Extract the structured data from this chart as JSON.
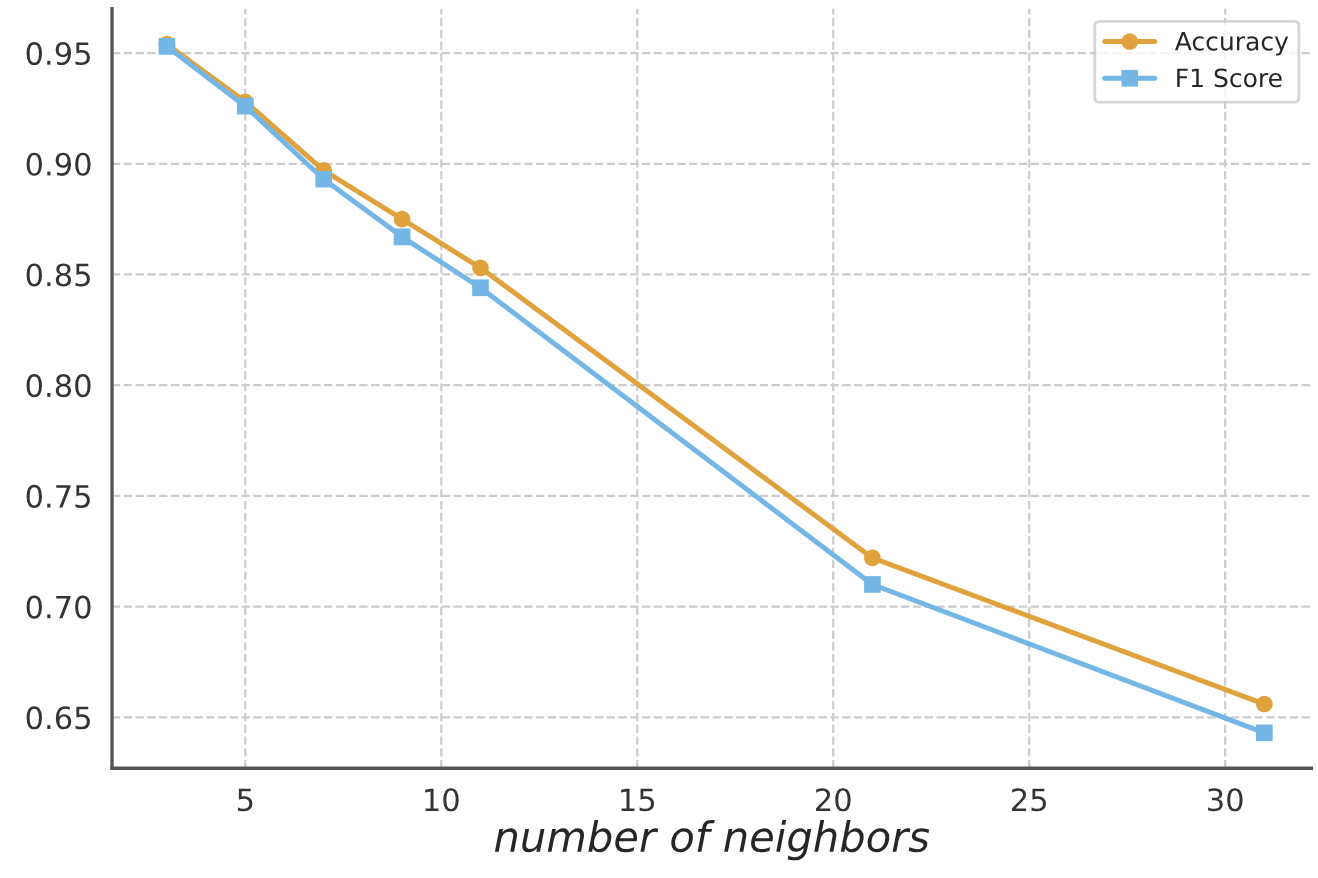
{
  "chart_data": {
    "type": "line",
    "xlabel": "number of neighbors",
    "x": [
      3,
      5,
      7,
      9,
      11,
      21,
      31
    ],
    "series": [
      {
        "name": "Accuracy",
        "color": "#e0a23c",
        "marker": "circle",
        "values": [
          0.954,
          0.928,
          0.897,
          0.875,
          0.853,
          0.722,
          0.656
        ]
      },
      {
        "name": "F1 Score",
        "color": "#74b6e6",
        "marker": "square",
        "values": [
          0.953,
          0.926,
          0.893,
          0.867,
          0.844,
          0.71,
          0.643
        ]
      }
    ],
    "xlim": [
      1.6,
      32.2
    ],
    "ylim": [
      0.627,
      0.97
    ],
    "xticks": [
      5,
      10,
      15,
      20,
      25,
      30
    ],
    "yticks": [
      0.65,
      {
        "value": 0.7,
        "label": "0.70"
      },
      0.75,
      {
        "value": 0.8,
        "label": "0.80"
      },
      0.85,
      {
        "value": 0.9,
        "label": "0.90"
      },
      0.95
    ],
    "grid": true,
    "legend": "top right",
    "line_style": "solid"
  }
}
